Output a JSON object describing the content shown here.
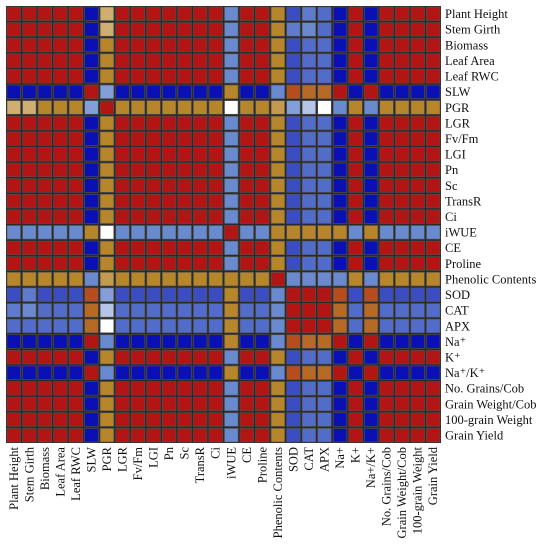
{
  "chart_data": {
    "type": "heatmap",
    "title": "",
    "xlabel": "",
    "ylabel": "",
    "grid": true,
    "legend": "none",
    "x_tick_labels": [
      "Plant Height",
      "Stem Girth",
      "Biomass",
      "Leaf Area",
      "Leaf RWC",
      "SLW",
      "PGR",
      "LGR",
      "Fv/Fm",
      "LGI",
      "Pn",
      "Sc",
      "TransR",
      "Ci",
      "iWUE",
      "CE",
      "Proline",
      "Phenolic Contents",
      "SOD",
      "CAT",
      "APX",
      "Na+",
      "K+",
      "Na+/K+",
      "No. Grains/Cob",
      "Grain Weight/Cob",
      "100-grain Weight",
      "Grain Yield"
    ],
    "y_tick_labels": [
      "Plant Height",
      "Stem Girth",
      "Biomass",
      "Leaf Area",
      "Leaf RWC",
      "SLW",
      "PGR",
      "LGR",
      "Fv/Fm",
      "LGI",
      "Pn",
      "Sc",
      "TransR",
      "Ci",
      "iWUE",
      "CE",
      "Proline",
      "Phenolic Contents",
      "SOD",
      "CAT",
      "APX",
      "Na⁺",
      "K⁺",
      "Na⁺/K⁺",
      "No. Grains/Cob",
      "Grain Weight/Cob",
      "100-grain Weight",
      "Grain Yield"
    ],
    "colors": {
      "positive": "#b31414",
      "negative": "#0a10b4",
      "weak_positive": "#b8862a",
      "weak_negative": "#6a8ad0",
      "near_zero": "#ffffff",
      "border": "#555555"
    },
    "group_signs": {
      "A": 1,
      "B": -1,
      "C": 1,
      "D": -1,
      "E": 1,
      "F": 0.25,
      "G": -0.4
    },
    "variable_groups": [
      "A",
      "A",
      "A",
      "A",
      "A",
      "B",
      "F",
      "A",
      "A",
      "A",
      "A",
      "A",
      "A",
      "A",
      "G",
      "A",
      "C",
      "F",
      "D",
      "D",
      "D",
      "D",
      "E",
      "D",
      "A",
      "A",
      "A",
      "A"
    ],
    "values": [
      [
        1,
        1,
        1,
        1,
        1,
        -1,
        0.2,
        1,
        1,
        1,
        1,
        1,
        1,
        1,
        -0.45,
        1,
        1,
        0.35,
        -0.7,
        -0.55,
        -0.6,
        -1,
        1,
        -1,
        1,
        1,
        1,
        1
      ],
      [
        1,
        1,
        1,
        1,
        1,
        -1,
        0.2,
        1,
        1,
        1,
        1,
        1,
        1,
        1,
        -0.45,
        1,
        1,
        0.35,
        -0.55,
        -0.45,
        -0.6,
        -1,
        1,
        -1,
        1,
        1,
        1,
        1
      ],
      [
        1,
        1,
        1,
        1,
        1,
        -1,
        0.3,
        1,
        1,
        1,
        1,
        1,
        1,
        1,
        -0.45,
        1,
        1,
        0.35,
        -0.7,
        -0.6,
        -0.6,
        -1,
        1,
        -1,
        1,
        1,
        1,
        1
      ],
      [
        1,
        1,
        1,
        1,
        1,
        -1,
        0.3,
        1,
        1,
        1,
        1,
        1,
        1,
        1,
        -0.45,
        1,
        1,
        0.35,
        -0.7,
        -0.6,
        -0.6,
        -1,
        1,
        -1,
        1,
        1,
        1,
        1
      ],
      [
        1,
        1,
        1,
        1,
        1,
        -1,
        0.3,
        1,
        1,
        1,
        1,
        1,
        1,
        1,
        -0.45,
        1,
        1,
        0.35,
        -0.7,
        -0.6,
        -0.6,
        -1,
        1,
        -1,
        1,
        1,
        1,
        1
      ],
      [
        -1,
        -1,
        -1,
        -1,
        -1,
        1,
        -0.25,
        -1,
        -1,
        -1,
        -1,
        -1,
        -1,
        -1,
        0.45,
        -1,
        -1,
        -0.35,
        0.7,
        0.6,
        0.6,
        1,
        -1,
        1,
        -1,
        -1,
        -1,
        -1
      ],
      [
        0.2,
        0.2,
        0.3,
        0.3,
        0.3,
        -0.25,
        1,
        0.3,
        0.3,
        0.3,
        0.3,
        0.3,
        0.3,
        0.3,
        0.0,
        0.3,
        0.3,
        0.25,
        -0.25,
        -0.15,
        0.0,
        -0.3,
        0.3,
        -0.3,
        0.3,
        0.3,
        0.3,
        0.3
      ],
      [
        1,
        1,
        1,
        1,
        1,
        -1,
        0.3,
        1,
        1,
        1,
        1,
        1,
        1,
        1,
        -0.45,
        1,
        1,
        0.35,
        -0.7,
        -0.6,
        -0.6,
        -1,
        1,
        -1,
        1,
        1,
        1,
        1
      ],
      [
        1,
        1,
        1,
        1,
        1,
        -1,
        0.3,
        1,
        1,
        1,
        1,
        1,
        1,
        1,
        -0.45,
        1,
        1,
        0.35,
        -0.7,
        -0.6,
        -0.6,
        -1,
        1,
        -1,
        1,
        1,
        1,
        1
      ],
      [
        1,
        1,
        1,
        1,
        1,
        -1,
        0.3,
        1,
        1,
        1,
        1,
        1,
        1,
        1,
        -0.45,
        1,
        1,
        0.35,
        -0.7,
        -0.6,
        -0.6,
        -1,
        1,
        -1,
        1,
        1,
        1,
        1
      ],
      [
        1,
        1,
        1,
        1,
        1,
        -1,
        0.3,
        1,
        1,
        1,
        1,
        1,
        1,
        1,
        -0.45,
        1,
        1,
        0.35,
        -0.7,
        -0.6,
        -0.6,
        -1,
        1,
        -1,
        1,
        1,
        1,
        1
      ],
      [
        1,
        1,
        1,
        1,
        1,
        -1,
        0.3,
        1,
        1,
        1,
        1,
        1,
        1,
        1,
        -0.45,
        1,
        1,
        0.35,
        -0.7,
        -0.6,
        -0.6,
        -1,
        1,
        -1,
        1,
        1,
        1,
        1
      ],
      [
        1,
        1,
        1,
        1,
        1,
        -1,
        0.3,
        1,
        1,
        1,
        1,
        1,
        1,
        1,
        -0.45,
        1,
        1,
        0.35,
        -0.7,
        -0.6,
        -0.6,
        -1,
        1,
        -1,
        1,
        1,
        1,
        1
      ],
      [
        1,
        1,
        1,
        1,
        1,
        -1,
        0.3,
        1,
        1,
        1,
        1,
        1,
        1,
        1,
        -0.45,
        1,
        1,
        0.35,
        -0.7,
        -0.6,
        -0.6,
        -1,
        1,
        -1,
        1,
        1,
        1,
        1
      ],
      [
        -0.45,
        -0.45,
        -0.45,
        -0.45,
        -0.45,
        0.45,
        0.0,
        -0.45,
        -0.45,
        -0.45,
        -0.45,
        -0.45,
        -0.45,
        -0.45,
        1,
        -0.45,
        -0.45,
        0.3,
        0.45,
        0.45,
        0.45,
        0.45,
        -0.45,
        0.45,
        -0.45,
        -0.45,
        -0.45,
        -0.45
      ],
      [
        1,
        1,
        1,
        1,
        1,
        -1,
        0.3,
        1,
        1,
        1,
        1,
        1,
        1,
        1,
        -0.45,
        1,
        1,
        0.35,
        -0.7,
        -0.6,
        -0.6,
        -1,
        1,
        -1,
        1,
        1,
        1,
        1
      ],
      [
        1,
        1,
        1,
        1,
        1,
        -1,
        0.3,
        1,
        1,
        1,
        1,
        1,
        1,
        1,
        -0.45,
        1,
        1,
        0.35,
        -0.7,
        -0.6,
        -0.6,
        -1,
        1,
        -1,
        1,
        1,
        1,
        1
      ],
      [
        0.35,
        0.35,
        0.35,
        0.35,
        0.35,
        -0.35,
        0.25,
        0.35,
        0.35,
        0.35,
        0.35,
        0.35,
        0.35,
        0.35,
        0.3,
        0.35,
        0.35,
        1,
        -0.3,
        -0.3,
        -0.3,
        -0.35,
        0.35,
        -0.35,
        0.35,
        0.35,
        0.35,
        0.35
      ],
      [
        -0.7,
        -0.55,
        -0.7,
        -0.7,
        -0.7,
        0.7,
        -0.25,
        -0.7,
        -0.7,
        -0.7,
        -0.7,
        -0.7,
        -0.7,
        -0.7,
        0.45,
        -0.7,
        -0.7,
        -0.3,
        1,
        1,
        1,
        0.7,
        -0.7,
        0.7,
        -0.7,
        -0.7,
        -0.7,
        -0.7
      ],
      [
        -0.55,
        -0.45,
        -0.6,
        -0.6,
        -0.6,
        0.6,
        -0.15,
        -0.6,
        -0.6,
        -0.6,
        -0.6,
        -0.6,
        -0.6,
        -0.6,
        0.45,
        -0.6,
        -0.6,
        -0.3,
        1,
        1,
        1,
        0.6,
        -0.6,
        0.6,
        -0.6,
        -0.6,
        -0.6,
        -0.6
      ],
      [
        -0.6,
        -0.6,
        -0.6,
        -0.6,
        -0.6,
        0.6,
        0.0,
        -0.6,
        -0.6,
        -0.6,
        -0.6,
        -0.6,
        -0.6,
        -0.6,
        0.45,
        -0.6,
        -0.6,
        -0.3,
        1,
        1,
        1,
        0.6,
        -0.6,
        0.6,
        -0.6,
        -0.6,
        -0.6,
        -0.6
      ],
      [
        -1,
        -1,
        -1,
        -1,
        -1,
        1,
        -0.3,
        -1,
        -1,
        -1,
        -1,
        -1,
        -1,
        -1,
        0.45,
        -1,
        -1,
        -0.35,
        0.7,
        0.6,
        0.6,
        1,
        -1,
        1,
        -1,
        -1,
        -1,
        -1
      ],
      [
        1,
        1,
        1,
        1,
        1,
        -1,
        0.3,
        1,
        1,
        1,
        1,
        1,
        1,
        1,
        -0.45,
        1,
        1,
        0.35,
        -0.7,
        -0.6,
        -0.6,
        -1,
        1,
        -1,
        1,
        1,
        1,
        1
      ],
      [
        -1,
        -1,
        -1,
        -1,
        -1,
        1,
        -0.3,
        -1,
        -1,
        -1,
        -1,
        -1,
        -1,
        -1,
        0.45,
        -1,
        -1,
        -0.35,
        0.7,
        0.6,
        0.6,
        1,
        -1,
        1,
        -1,
        -1,
        -1,
        -1
      ],
      [
        1,
        1,
        1,
        1,
        1,
        -1,
        0.3,
        1,
        1,
        1,
        1,
        1,
        1,
        1,
        -0.45,
        1,
        1,
        0.35,
        -0.7,
        -0.6,
        -0.6,
        -1,
        1,
        -1,
        1,
        1,
        1,
        1
      ],
      [
        1,
        1,
        1,
        1,
        1,
        -1,
        0.3,
        1,
        1,
        1,
        1,
        1,
        1,
        1,
        -0.45,
        1,
        1,
        0.35,
        -0.7,
        -0.6,
        -0.6,
        -1,
        1,
        -1,
        1,
        1,
        1,
        1
      ],
      [
        1,
        1,
        1,
        1,
        1,
        -1,
        0.3,
        1,
        1,
        1,
        1,
        1,
        1,
        1,
        -0.45,
        1,
        1,
        0.35,
        -0.7,
        -0.6,
        -0.6,
        -1,
        1,
        -1,
        1,
        1,
        1,
        1
      ],
      [
        1,
        1,
        1,
        1,
        1,
        -1,
        0.3,
        1,
        1,
        1,
        1,
        1,
        1,
        1,
        -0.45,
        1,
        1,
        0.35,
        -0.7,
        -0.6,
        -0.6,
        -1,
        1,
        -1,
        1,
        1,
        1,
        1
      ]
    ]
  }
}
